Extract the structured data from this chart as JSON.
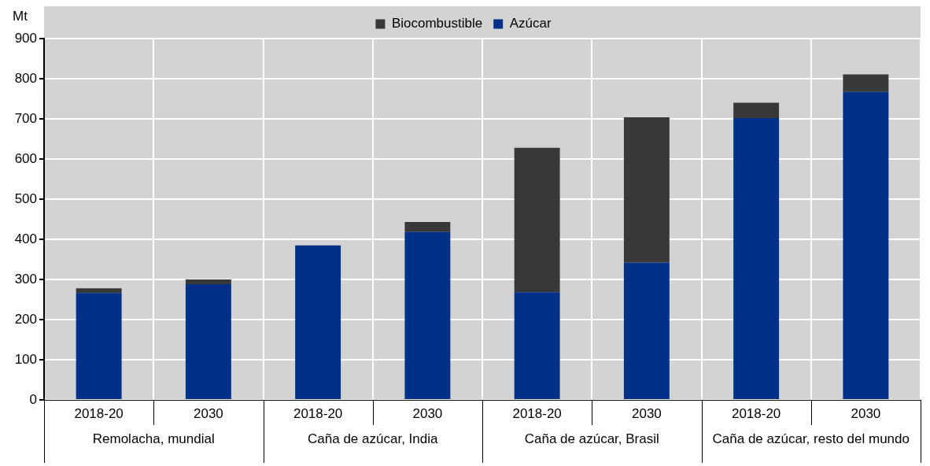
{
  "chart_data": {
    "type": "bar",
    "stacked": true,
    "ylabel": "Mt",
    "categories": [
      "2018-20",
      "2030",
      "2018-20",
      "2030",
      "2018-20",
      "2030",
      "2018-20",
      "2030"
    ],
    "annotations": [
      "Remolacha, mundial",
      "Caña de azúcar, India",
      "Caña de azúcar, Brasil",
      "Caña de azúcar, resto del mundo"
    ],
    "series": [
      {
        "name": "Azúcar",
        "color": "#003087",
        "values": [
          266,
          288,
          385,
          418,
          268,
          342,
          702,
          767
        ]
      },
      {
        "name": "Biocombustible",
        "color": "#383838",
        "values": [
          12,
          12,
          0,
          25,
          360,
          362,
          38,
          44
        ]
      }
    ],
    "ylim": [
      0,
      900
    ],
    "yticks": [
      0,
      100,
      200,
      300,
      400,
      500,
      600,
      700,
      800,
      900
    ],
    "grid": true,
    "legend": "top"
  }
}
